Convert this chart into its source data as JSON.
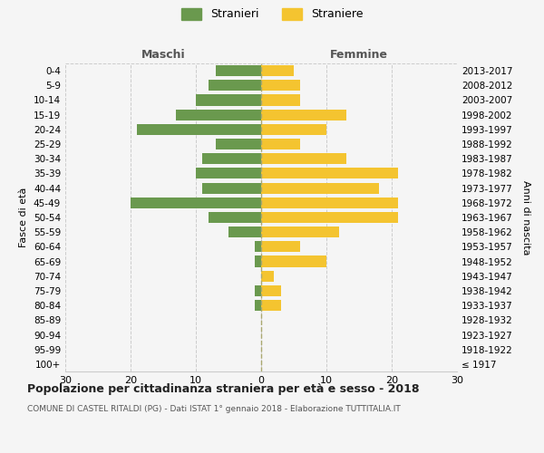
{
  "age_groups": [
    "100+",
    "95-99",
    "90-94",
    "85-89",
    "80-84",
    "75-79",
    "70-74",
    "65-69",
    "60-64",
    "55-59",
    "50-54",
    "45-49",
    "40-44",
    "35-39",
    "30-34",
    "25-29",
    "20-24",
    "15-19",
    "10-14",
    "5-9",
    "0-4"
  ],
  "birth_years": [
    "≤ 1917",
    "1918-1922",
    "1923-1927",
    "1928-1932",
    "1933-1937",
    "1938-1942",
    "1943-1947",
    "1948-1952",
    "1953-1957",
    "1958-1962",
    "1963-1967",
    "1968-1972",
    "1973-1977",
    "1978-1982",
    "1983-1987",
    "1988-1992",
    "1993-1997",
    "1998-2002",
    "2003-2007",
    "2008-2012",
    "2013-2017"
  ],
  "maschi": [
    0,
    0,
    0,
    0,
    1,
    1,
    0,
    1,
    1,
    5,
    8,
    20,
    9,
    10,
    9,
    7,
    19,
    13,
    10,
    8,
    7
  ],
  "femmine": [
    0,
    0,
    0,
    0,
    3,
    3,
    2,
    10,
    6,
    12,
    21,
    21,
    18,
    21,
    13,
    6,
    10,
    13,
    6,
    6,
    5
  ],
  "maschi_color": "#6a994e",
  "femmine_color": "#f4c430",
  "background_color": "#f5f5f5",
  "grid_color": "#cccccc",
  "title": "Popolazione per cittadinanza straniera per età e sesso - 2018",
  "subtitle": "COMUNE DI CASTEL RITALDI (PG) - Dati ISTAT 1° gennaio 2018 - Elaborazione TUTTITALIA.IT",
  "xlabel_left": "Maschi",
  "xlabel_right": "Femmine",
  "ylabel_left": "Fasce di età",
  "ylabel_right": "Anni di nascita",
  "legend_maschi": "Stranieri",
  "legend_femmine": "Straniere",
  "xlim": 30
}
